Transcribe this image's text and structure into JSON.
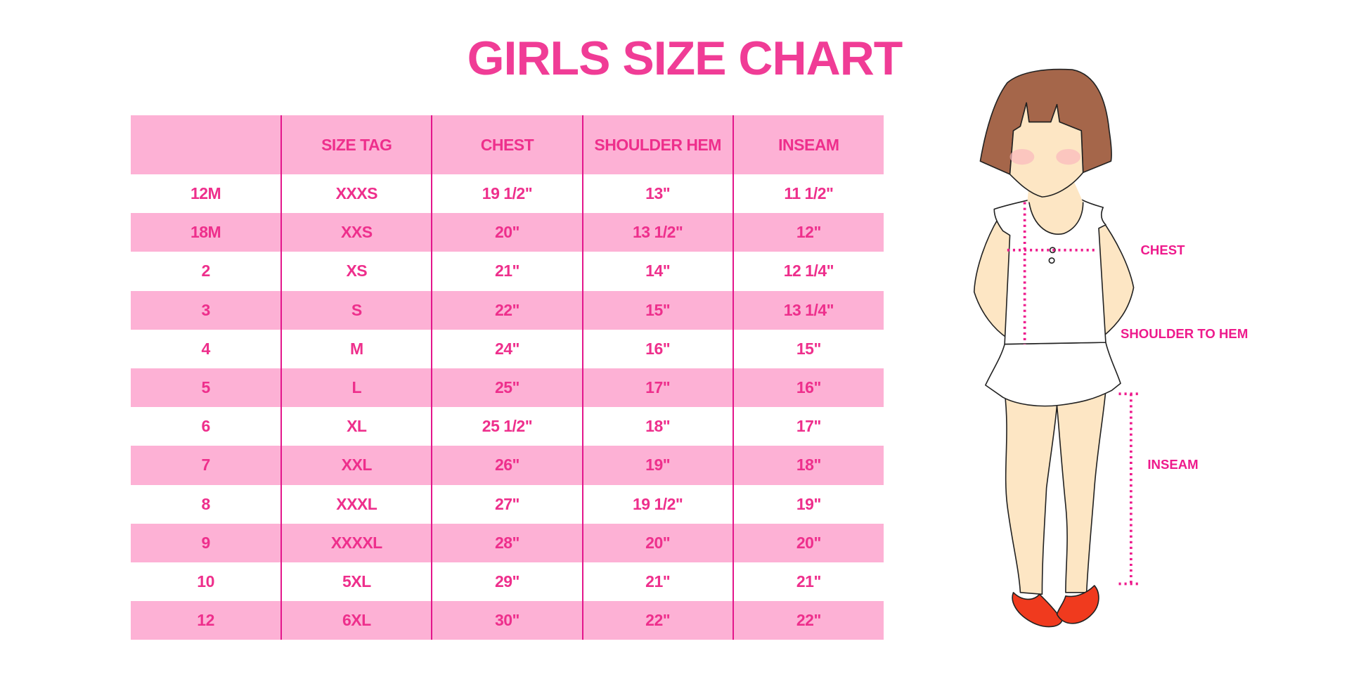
{
  "title": "GIRLS SIZE CHART",
  "colors": {
    "accent": "#f03c96",
    "row_pink": "#fdb1d5",
    "divider": "#e3168b",
    "hair": "#a5664a",
    "skin": "#fde6c4",
    "shoes": "#f03a1e"
  },
  "chart_data": {
    "type": "table",
    "title": "GIRLS SIZE CHART",
    "columns": [
      "",
      "SIZE TAG",
      "CHEST",
      "SHOULDER HEM",
      "INSEAM"
    ],
    "rows": [
      [
        "12M",
        "XXXS",
        "19 1/2\"",
        "13\"",
        "11 1/2\""
      ],
      [
        "18M",
        "XXS",
        "20\"",
        "13 1/2\"",
        "12\""
      ],
      [
        "2",
        "XS",
        "21\"",
        "14\"",
        "12 1/4\""
      ],
      [
        "3",
        "S",
        "22\"",
        "15\"",
        "13 1/4\""
      ],
      [
        "4",
        "M",
        "24\"",
        "16\"",
        "15\""
      ],
      [
        "5",
        "L",
        "25\"",
        "17\"",
        "16\""
      ],
      [
        "6",
        "XL",
        "25 1/2\"",
        "18\"",
        "17\""
      ],
      [
        "7",
        "XXL",
        "26\"",
        "19\"",
        "18\""
      ],
      [
        "8",
        "XXXL",
        "27\"",
        "19 1/2\"",
        "19\""
      ],
      [
        "9",
        "XXXXL",
        "28\"",
        "20\"",
        "20\""
      ],
      [
        "10",
        "5XL",
        "29\"",
        "21\"",
        "21\""
      ],
      [
        "12",
        "6XL",
        "30\"",
        "22\"",
        "22\""
      ]
    ]
  },
  "figure": {
    "labels": {
      "chest": "CHEST",
      "shoulder": "SHOULDER TO HEM",
      "inseam": "INSEAM"
    }
  }
}
